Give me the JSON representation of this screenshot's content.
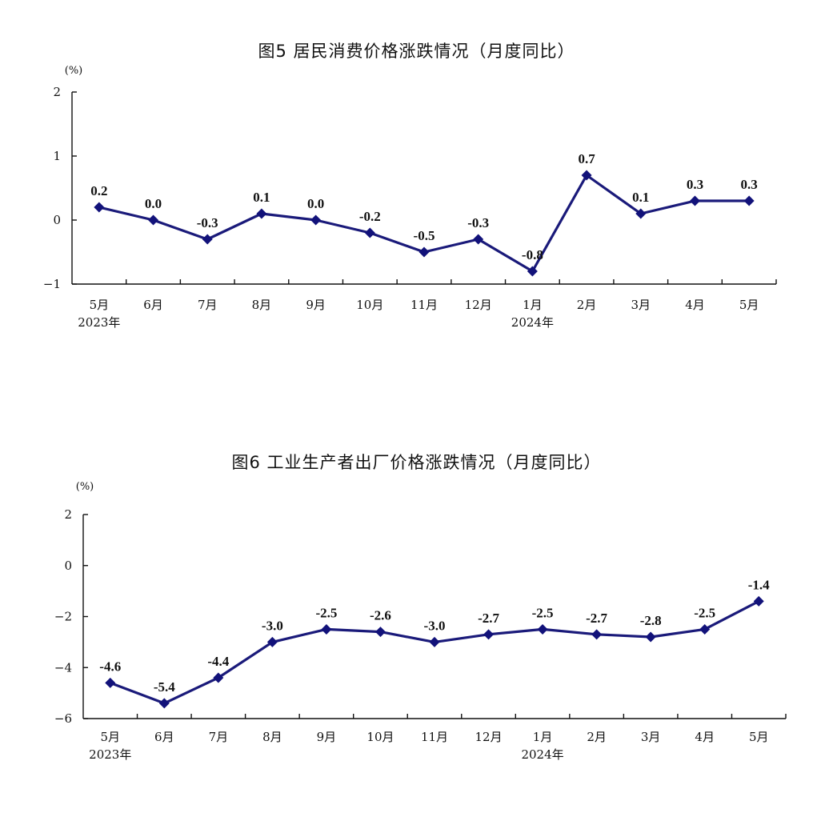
{
  "chart_data": [
    {
      "type": "line",
      "title": "图5   居民消费价格涨跌情况（月度同比）",
      "ylabel": "(%)",
      "categories": [
        "5月",
        "6月",
        "7月",
        "8月",
        "9月",
        "10月",
        "11月",
        "12月",
        "1月",
        "2月",
        "3月",
        "4月",
        "5月"
      ],
      "year_labels": [
        {
          "index": 0,
          "label": "2023年"
        },
        {
          "index": 8,
          "label": "2024年"
        }
      ],
      "values": [
        0.2,
        0.0,
        -0.3,
        0.1,
        0.0,
        -0.2,
        -0.5,
        -0.3,
        -0.8,
        0.7,
        0.1,
        0.3,
        0.3
      ],
      "value_labels": [
        "0.2",
        "0.0",
        "-0.3",
        "0.1",
        "0.0",
        "-0.2",
        "-0.5",
        "-0.3",
        "-0.8",
        "0.7",
        "0.1",
        "0.3",
        "0.3"
      ],
      "yticks": [
        "2",
        "1",
        "0",
        "−1"
      ],
      "ylim": [
        -1,
        2
      ],
      "grid": false,
      "line_color": "#1a1a7a"
    },
    {
      "type": "line",
      "title": "图6   工业生产者出厂价格涨跌情况（月度同比）",
      "ylabel": "(%)",
      "categories": [
        "5月",
        "6月",
        "7月",
        "8月",
        "9月",
        "10月",
        "11月",
        "12月",
        "1月",
        "2月",
        "3月",
        "4月",
        "5月"
      ],
      "year_labels": [
        {
          "index": 0,
          "label": "2023年"
        },
        {
          "index": 8,
          "label": "2024年"
        }
      ],
      "values": [
        -4.6,
        -5.4,
        -4.4,
        -3.0,
        -2.5,
        -2.6,
        -3.0,
        -2.7,
        -2.5,
        -2.7,
        -2.8,
        -2.5,
        -1.4
      ],
      "value_labels": [
        "-4.6",
        "-5.4",
        "-4.4",
        "-3.0",
        "-2.5",
        "-2.6",
        "-3.0",
        "-2.7",
        "-2.5",
        "-2.7",
        "-2.8",
        "-2.5",
        "-1.4"
      ],
      "yticks": [
        "2",
        "0",
        "−2",
        "−4",
        "−6"
      ],
      "ylim": [
        -6,
        2
      ],
      "grid": false,
      "line_color": "#1a1a7a"
    }
  ]
}
